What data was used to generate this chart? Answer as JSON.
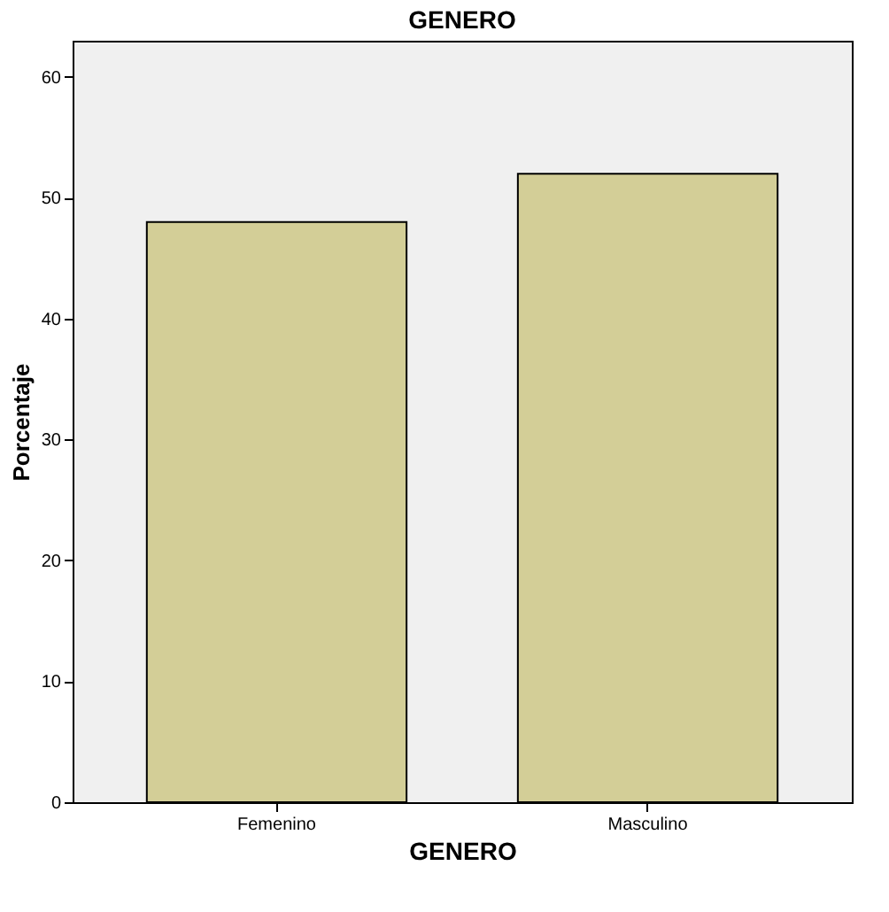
{
  "chart_data": {
    "type": "bar",
    "title": "GENERO",
    "xlabel": "GENERO",
    "ylabel": "Porcentaje",
    "categories": [
      "Femenino",
      "Masculino"
    ],
    "values": [
      48,
      52
    ],
    "color": "#d3ce97",
    "ylim": [
      0,
      63
    ],
    "yticks": [
      0,
      10,
      20,
      30,
      40,
      50,
      60
    ],
    "grid": false
  }
}
